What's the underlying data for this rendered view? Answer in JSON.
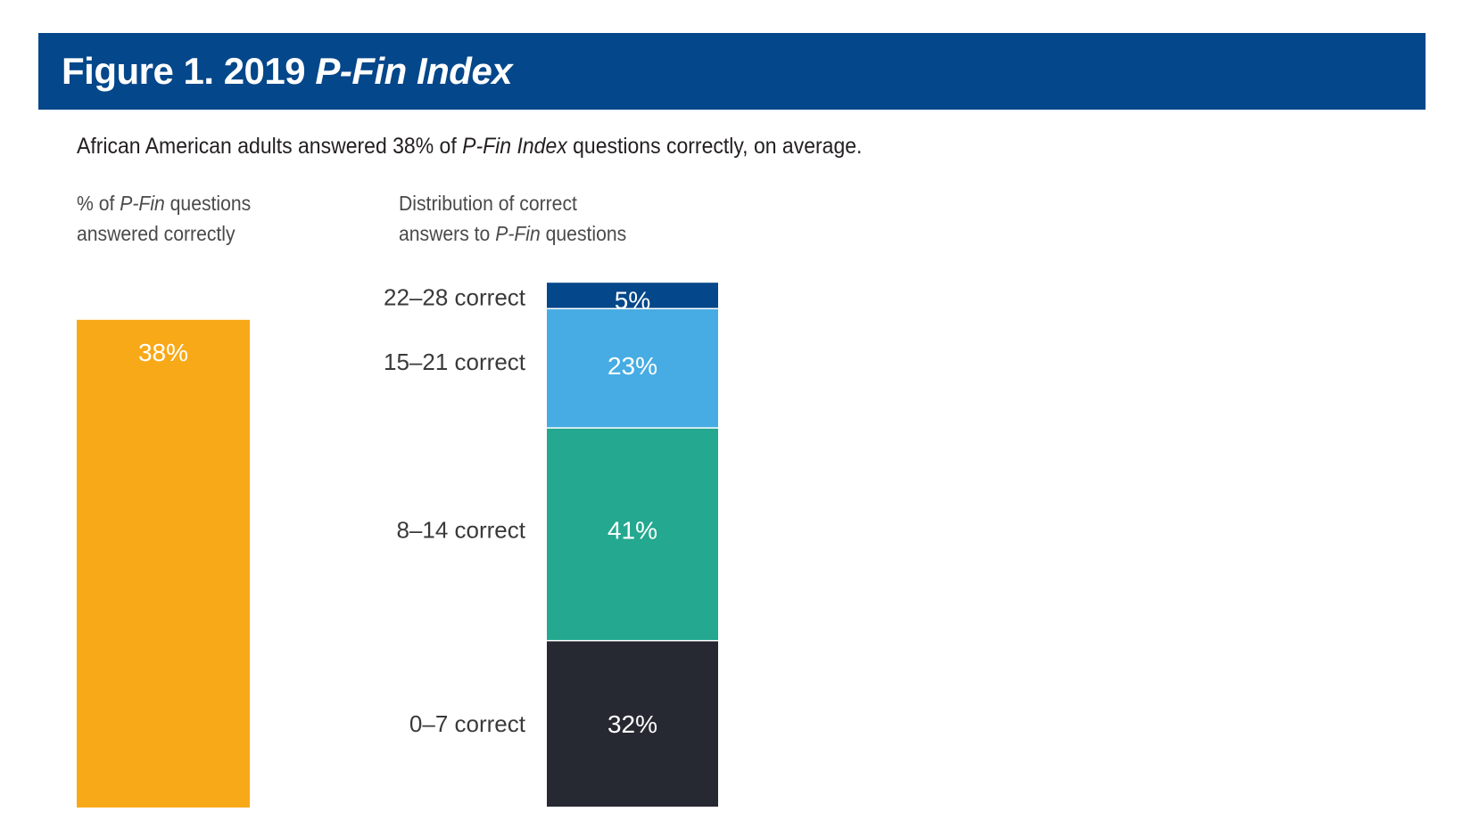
{
  "header": {
    "title_prefix": "Figure 1. 2019 ",
    "title_italic": "P-Fin Index"
  },
  "subtitle": {
    "part1": "African American adults answered 38% of ",
    "italic": "P-Fin Index",
    "part2": " questions correctly, on average."
  },
  "left_heading": {
    "line1_prefix": "% of ",
    "line1_italic": "P-Fin",
    "line1_suffix": " questions",
    "line2": "answered correctly"
  },
  "right_heading": {
    "line1": "Distribution of correct",
    "line2_prefix": "answers to ",
    "line2_italic": "P-Fin",
    "line2_suffix": " questions"
  },
  "colors": {
    "banner": "#04478a",
    "left_bar": "#f8a918",
    "seg_22_28": "#04478a",
    "seg_15_21": "#46ace3",
    "seg_8_14": "#24a88f",
    "seg_0_7": "#262932"
  },
  "chart_data": [
    {
      "type": "bar",
      "categories": [
        ""
      ],
      "values": [
        38
      ],
      "value_labels": [
        "38%"
      ],
      "ylim": [
        0,
        100
      ]
    },
    {
      "type": "bar",
      "stacked": true,
      "categories": [
        "0–7 correct",
        "8–14 correct",
        "15–21 correct",
        "22–28 correct"
      ],
      "values": [
        32,
        41,
        23,
        5
      ],
      "value_labels": [
        "32%",
        "41%",
        "23%",
        "5%"
      ]
    }
  ]
}
